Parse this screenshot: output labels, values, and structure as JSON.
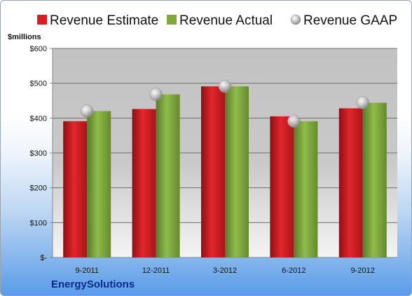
{
  "company": "EnergySolutions",
  "chart_data": {
    "type": "bar",
    "ylabel": "$millions",
    "ylim": [
      0,
      600
    ],
    "yticks": [
      "$-",
      "$100",
      "$200",
      "$300",
      "$400",
      "$500",
      "$600"
    ],
    "categories": [
      "9-2011",
      "12-2011",
      "3-2012",
      "6-2012",
      "9-2012"
    ],
    "series": [
      {
        "name": "Revenue Estimate",
        "kind": "bar",
        "color": "#d41f25",
        "values": [
          391,
          426,
          491,
          405,
          428
        ]
      },
      {
        "name": "Revenue Actual",
        "kind": "bar",
        "color": "#7fa83f",
        "values": [
          420,
          468,
          491,
          391,
          444
        ]
      },
      {
        "name": "Revenue GAAP",
        "kind": "marker",
        "color": "#b8b8b8",
        "values": [
          420,
          468,
          491,
          391,
          444
        ]
      }
    ],
    "grid": true,
    "legend": "top"
  }
}
